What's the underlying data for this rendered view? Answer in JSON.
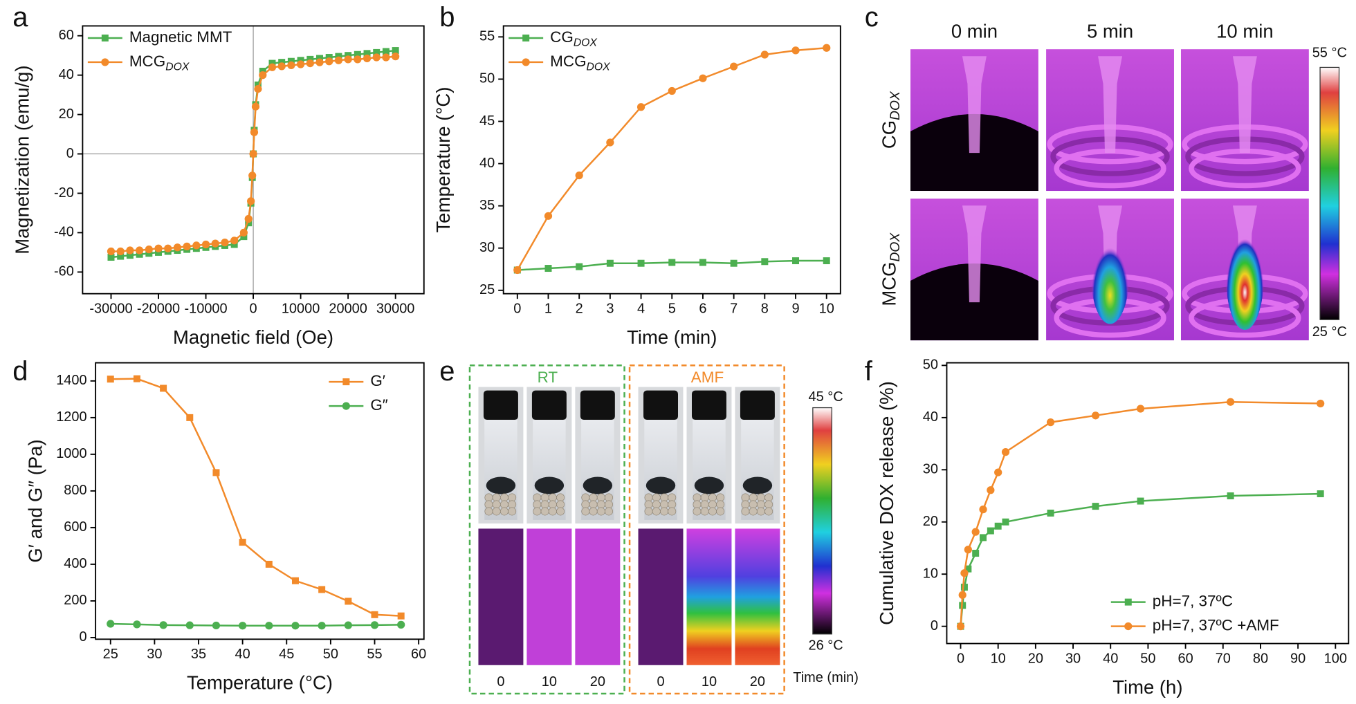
{
  "panel_labels": [
    "a",
    "b",
    "c",
    "d",
    "e",
    "f"
  ],
  "thermal_panel": {
    "columns": [
      "0 min",
      "5 min",
      "10 min"
    ],
    "rows": [
      {
        "name": "CG",
        "subscript": "DOX"
      },
      {
        "name": "MCG",
        "subscript": "DOX"
      }
    ],
    "scale_max": "55 °C",
    "scale_min": "25 °C"
  },
  "vial_panel": {
    "groups": [
      "RT",
      "AMF"
    ],
    "times": [
      "0",
      "10",
      "20",
      "0",
      "10",
      "20"
    ],
    "scale_max": "45 °C",
    "scale_min": "26 °C",
    "time_label": "Time (min)"
  },
  "chart_data": [
    {
      "type": "line",
      "x_label": "Magnetic field (Oe)",
      "y_label": "Magnetization (emu/g)",
      "xlim": [
        -36000,
        36000
      ],
      "ylim": [
        -71,
        65
      ],
      "xticks": [
        -30000,
        -20000,
        -10000,
        0,
        10000,
        20000,
        30000
      ],
      "yticks": [
        -60,
        -40,
        -20,
        0,
        20,
        40,
        60
      ],
      "zero_lines": true,
      "legend": "upper left",
      "x": [
        -30000,
        -28000,
        -26000,
        -24000,
        -22000,
        -20000,
        -18000,
        -16000,
        -14000,
        -12000,
        -10000,
        -8000,
        -6000,
        -4000,
        -2000,
        -1000,
        -500,
        -200,
        0,
        200,
        500,
        1000,
        2000,
        4000,
        6000,
        8000,
        10000,
        12000,
        14000,
        16000,
        18000,
        20000,
        22000,
        24000,
        26000,
        28000,
        30000
      ],
      "series": [
        {
          "name": "Magnetic MMT",
          "color": "#4caf50",
          "marker": "square",
          "values": [
            -52.5,
            -52,
            -51.5,
            -51,
            -50.5,
            -50,
            -49.5,
            -49,
            -48.5,
            -48,
            -47.5,
            -47,
            -46.5,
            -46,
            -42,
            -35,
            -25,
            -12,
            0,
            12,
            25,
            35,
            42,
            46,
            46.5,
            47,
            47.5,
            48,
            48.5,
            49,
            49.5,
            50,
            50.5,
            51,
            51.5,
            52,
            52.5
          ]
        },
        {
          "name": "MCG",
          "name_subscript": "DOX",
          "color": "#f28a2a",
          "marker": "circle",
          "values": [
            -49.5,
            -49.5,
            -49,
            -49,
            -48.5,
            -48,
            -48,
            -47.5,
            -47,
            -46.5,
            -46,
            -45.5,
            -45,
            -44,
            -40,
            -33,
            -24,
            -11,
            0,
            11,
            24,
            33,
            40,
            44,
            44.5,
            45,
            45.5,
            46,
            46.5,
            47,
            47.5,
            48,
            48,
            48.5,
            49,
            49,
            49.5
          ]
        }
      ]
    },
    {
      "type": "line",
      "x_label": "Time (min)",
      "y_label": "Temperature (°C)",
      "xlim": [
        -0.45,
        10.45
      ],
      "ylim": [
        24.6,
        56.3
      ],
      "xticks": [
        0,
        1,
        2,
        3,
        4,
        5,
        6,
        7,
        8,
        9,
        10
      ],
      "yticks": [
        25,
        30,
        35,
        40,
        45,
        50,
        55
      ],
      "legend": "upper left",
      "x": [
        0,
        1,
        2,
        3,
        4,
        5,
        6,
        7,
        8,
        9,
        10
      ],
      "series": [
        {
          "name": "CG",
          "name_subscript": "DOX",
          "color": "#4caf50",
          "marker": "square",
          "values": [
            27.4,
            27.6,
            27.8,
            28.2,
            28.2,
            28.3,
            28.3,
            28.2,
            28.4,
            28.5,
            28.5
          ]
        },
        {
          "name": "MCG",
          "name_subscript": "DOX",
          "color": "#f28a2a",
          "marker": "circle",
          "values": [
            27.4,
            33.8,
            38.6,
            42.5,
            46.7,
            48.6,
            50.1,
            51.5,
            52.9,
            53.4,
            53.7
          ]
        }
      ]
    },
    {
      "type": "line",
      "x_label": "Temperature (°C)",
      "y_label": "G′ and G″ (Pa)",
      "xlim": [
        23.3,
        60.6
      ],
      "ylim": [
        -9,
        1499
      ],
      "xticks": [
        25,
        30,
        35,
        40,
        45,
        50,
        55,
        60
      ],
      "yticks": [
        0,
        200,
        400,
        600,
        800,
        1000,
        1200,
        1400
      ],
      "legend": "upper right",
      "x": [
        25,
        28,
        31,
        34,
        37,
        40,
        43,
        46,
        49,
        52,
        55,
        58
      ],
      "series": [
        {
          "name": "G′",
          "color": "#f28a2a",
          "marker": "square",
          "values": [
            1410,
            1412,
            1360,
            1200,
            900,
            520,
            400,
            310,
            262,
            198,
            125,
            118
          ]
        },
        {
          "name": "G″",
          "color": "#4caf50",
          "marker": "circle",
          "values": [
            75,
            72,
            68,
            67,
            66,
            65,
            65,
            65,
            65,
            67,
            68,
            70
          ]
        }
      ]
    },
    {
      "type": "line",
      "x_label": "Time (h)",
      "y_label": "Cumulative  DOX release (%)",
      "xlim": [
        -3.7,
        103.5
      ],
      "ylim": [
        -3.3,
        50.5
      ],
      "xticks": [
        0,
        10,
        20,
        30,
        40,
        50,
        60,
        70,
        80,
        90,
        100
      ],
      "yticks": [
        0,
        10,
        20,
        30,
        40,
        50
      ],
      "legend": "lower right",
      "x": [
        0,
        0.5,
        1,
        2,
        4,
        6,
        8,
        10,
        12,
        24,
        36,
        48,
        72,
        96
      ],
      "series": [
        {
          "name": "pH=7, 37ºC",
          "color": "#4caf50",
          "marker": "square",
          "values": [
            0,
            4,
            7.5,
            11,
            14,
            17,
            18.3,
            19.2,
            20,
            21.7,
            23,
            24,
            25,
            25.4
          ]
        },
        {
          "name": "pH=7, 37ºC +AMF",
          "color": "#f28a2a",
          "marker": "circle",
          "values": [
            0,
            6,
            10.2,
            14.7,
            18.1,
            22.4,
            26.1,
            29.5,
            33.4,
            39.1,
            40.4,
            41.7,
            43,
            42.7
          ]
        }
      ]
    }
  ]
}
